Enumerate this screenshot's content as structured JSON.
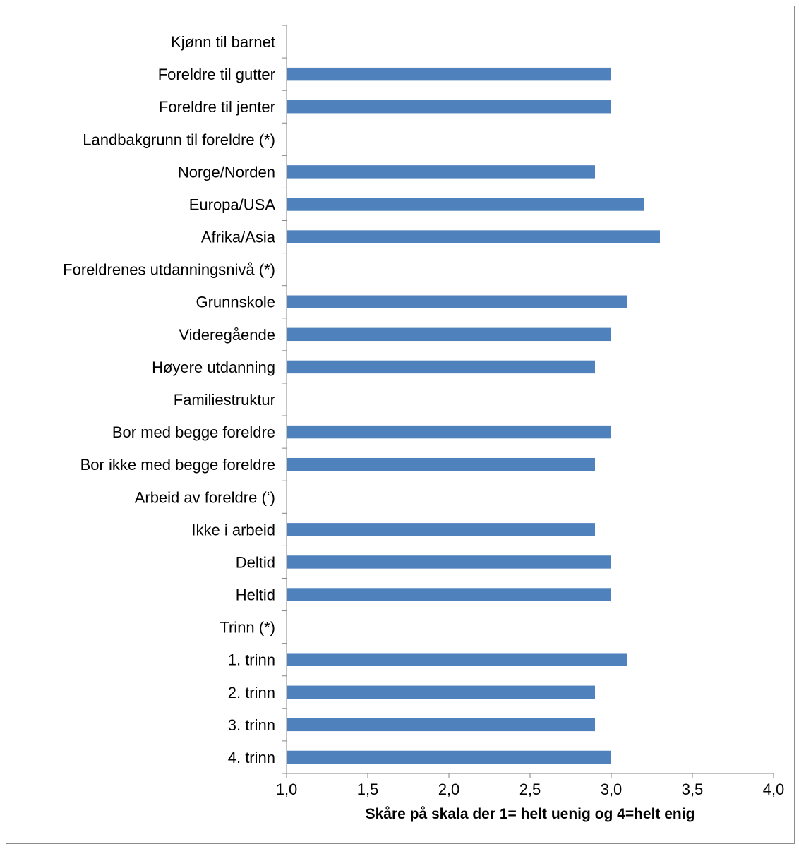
{
  "chart_data": {
    "type": "bar",
    "orientation": "horizontal",
    "categories": [
      "Kjønn til barnet",
      "Foreldre til gutter",
      "Foreldre til jenter",
      "Landbakgrunn til foreldre (*)",
      "Norge/Norden",
      "Europa/USA",
      "Afrika/Asia",
      "Foreldrenes utdanningsnivå (*)",
      "Grunnskole",
      "Videregående",
      "Høyere utdanning",
      "Familiestruktur",
      "Bor med begge foreldre",
      "Bor ikke med begge foreldre",
      "Arbeid av foreldre (‘)",
      "Ikke i arbeid",
      "Deltid",
      "Heltid",
      "Trinn (*)",
      "1. trinn",
      "2. trinn",
      "3. trinn",
      "4. trinn"
    ],
    "values": [
      null,
      3.0,
      3.0,
      null,
      2.9,
      3.2,
      3.3,
      null,
      3.1,
      3.0,
      2.9,
      null,
      3.0,
      2.9,
      null,
      2.9,
      3.0,
      3.0,
      null,
      3.1,
      2.9,
      2.9,
      3.0
    ],
    "xlabel": "Skåre på skala der 1= helt uenig og 4=helt enig",
    "ylabel": "",
    "xlim": [
      1.0,
      4.0
    ],
    "xticks": [
      "1,0",
      "1,5",
      "2,0",
      "2,5",
      "3,0",
      "3,5",
      "4,0"
    ],
    "bar_color": "#4f81bd",
    "axis_color": "#868686",
    "grid": false,
    "legend": "none"
  }
}
